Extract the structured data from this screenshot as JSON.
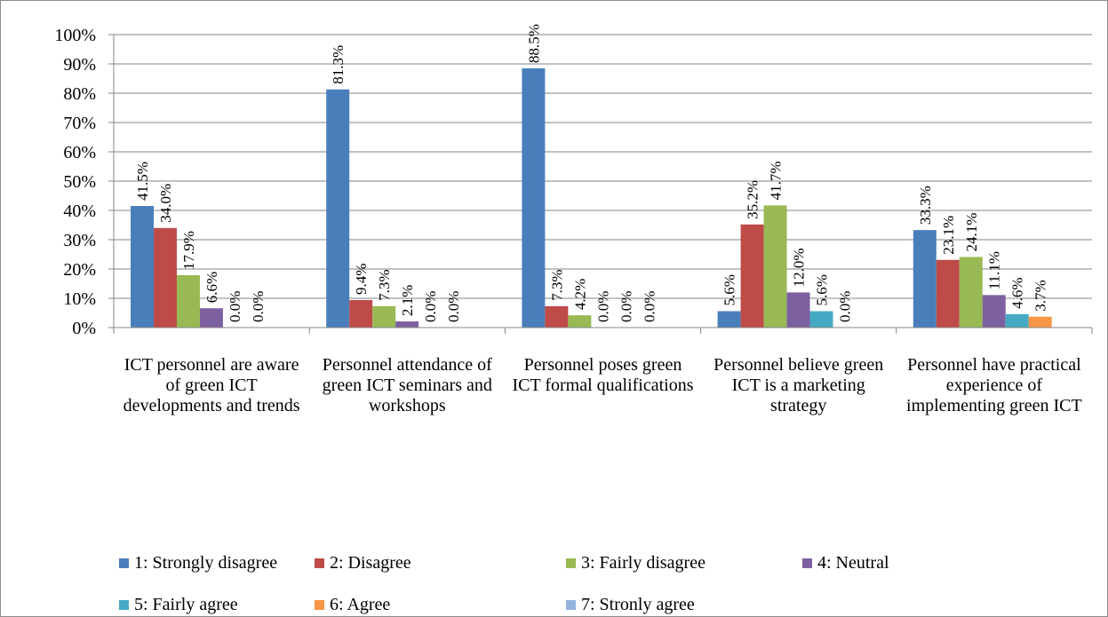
{
  "chart_data": {
    "type": "bar",
    "categories": [
      "ICT personnel are aware of green ICT developments and trends",
      "Personnel attendance of green ICT seminars and workshops",
      "Personnel poses green ICT formal qualifications",
      "Personnel believe green ICT is a marketing strategy",
      "Personnel have practical experience of implementing green ICT"
    ],
    "series": [
      {
        "name": "1: Strongly disagree",
        "color": "#4a7ebb",
        "values": [
          41.5,
          81.3,
          88.5,
          5.6,
          33.3
        ],
        "value_labels": [
          "41.5%",
          "81.3%",
          "88.5%",
          "5.6%",
          "33.3%"
        ]
      },
      {
        "name": "2: Disagree",
        "color": "#be4b48",
        "values": [
          34.0,
          9.4,
          7.3,
          35.2,
          23.1
        ],
        "value_labels": [
          "34.0%",
          "9.4%",
          "7.3%",
          "35.2%",
          "23.1%"
        ]
      },
      {
        "name": "3: Fairly disagree",
        "color": "#98b954",
        "values": [
          17.9,
          7.3,
          4.2,
          41.7,
          24.1
        ],
        "value_labels": [
          "17.9%",
          "7.3%",
          "4.2%",
          "41.7%",
          "24.1%"
        ]
      },
      {
        "name": "4: Neutral",
        "color": "#7d60a0",
        "values": [
          6.6,
          2.1,
          0.0,
          12.0,
          11.1
        ],
        "value_labels": [
          "6.6%",
          "2.1%",
          "0.0%",
          "12.0%",
          "11.1%"
        ]
      },
      {
        "name": "5: Fairly agree",
        "color": "#46aac5",
        "values": [
          0.0,
          0.0,
          0.0,
          5.6,
          4.6
        ],
        "value_labels": [
          "0.0%",
          "0.0%",
          "0.0%",
          "5.6%",
          "4.6%"
        ]
      },
      {
        "name": "6: Agree",
        "color": "#f79646",
        "values": [
          0.0,
          0.0,
          0.0,
          0.0,
          3.7
        ],
        "value_labels": [
          "0.0%",
          "0.0%",
          "0.0%",
          "0.0%",
          "3.7%"
        ]
      },
      {
        "name": "7: Stronly agree",
        "color": "#95b3e0",
        "values": [
          null,
          null,
          null,
          null,
          null
        ]
      }
    ],
    "ylim": [
      0,
      100
    ],
    "yticks": [
      {
        "value": 0,
        "label": "0%"
      },
      {
        "value": 10,
        "label": "10%"
      },
      {
        "value": 20,
        "label": "20%"
      },
      {
        "value": 30,
        "label": "30%"
      },
      {
        "value": 40,
        "label": "40%"
      },
      {
        "value": 50,
        "label": "50%"
      },
      {
        "value": 60,
        "label": "60%"
      },
      {
        "value": 70,
        "label": "70%"
      },
      {
        "value": 80,
        "label": "80%"
      },
      {
        "value": 90,
        "label": "90%"
      },
      {
        "value": 100,
        "label": "100%"
      }
    ],
    "grid": true
  }
}
